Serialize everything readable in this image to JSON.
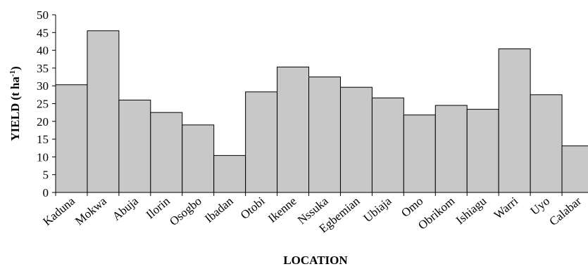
{
  "chart_data": {
    "type": "bar",
    "title": "",
    "xlabel": "LOCATION",
    "ylabel": "YIELD (t ha",
    "ylabel_sup": "-1",
    "ylabel_close": ")",
    "ylim": [
      0,
      50
    ],
    "yticks": [
      0,
      5,
      10,
      15,
      20,
      25,
      30,
      35,
      40,
      45,
      50
    ],
    "grid": false,
    "legend": "none",
    "bar_color": "#c8c8c8",
    "bar_edge_color": "#000000",
    "categories": [
      "Kaduna",
      "Mokwa",
      "Abuja",
      "Ilorin",
      "Osogbo",
      "Ibadan",
      "Otobi",
      "Ikenne",
      "Nssuka",
      "Egbemian",
      "Ubiaja",
      "Omo",
      "Obrikom",
      "Ishiagu",
      "Warri",
      "Uyo",
      "Calabar"
    ],
    "values": [
      30.3,
      45.5,
      26.0,
      22.5,
      19.0,
      10.4,
      28.3,
      35.3,
      32.5,
      29.6,
      26.6,
      21.8,
      24.5,
      23.4,
      40.4,
      27.5,
      13.1
    ]
  }
}
